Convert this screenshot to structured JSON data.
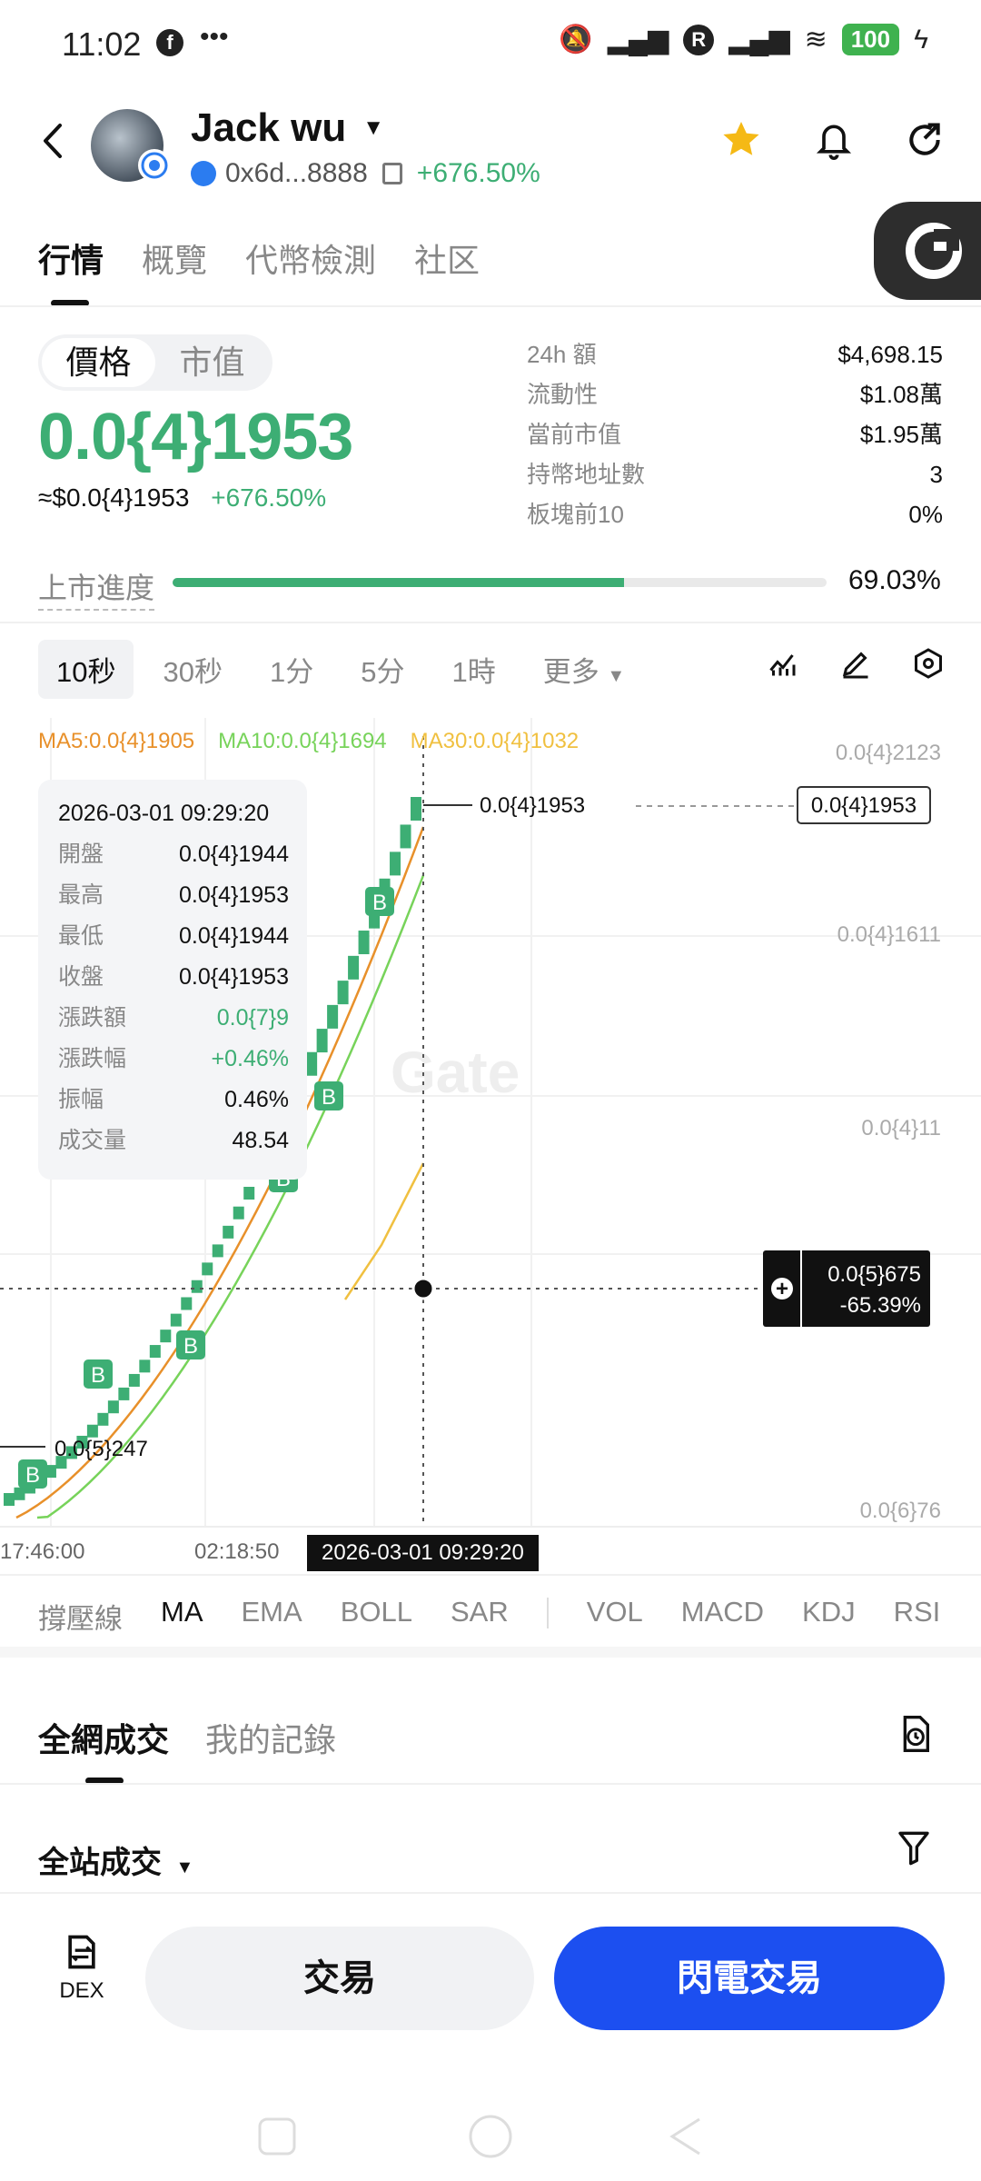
{
  "status_bar": {
    "time": "11:02",
    "dots": "•••",
    "battery": "100"
  },
  "header": {
    "name": "Jack wu",
    "address": "0x6d...8888",
    "change": "+676.50%"
  },
  "tabs": [
    "行情",
    "概覽",
    "代幣檢測",
    "社区"
  ],
  "price_toggle": {
    "price": "價格",
    "mcap": "市值"
  },
  "price": {
    "big": "0.0{4}1953",
    "usd": "≈$0.0{4}1953",
    "change": "+676.50%"
  },
  "stats": [
    {
      "k": "24h  額",
      "v": "$4,698.15"
    },
    {
      "k": "流動性",
      "v": "$1.08萬"
    },
    {
      "k": "當前市值",
      "v": "$1.95萬"
    },
    {
      "k": "持幣地址數",
      "v": "3"
    },
    {
      "k": "板塊前10",
      "v": "0%"
    }
  ],
  "progress": {
    "label": "上市進度",
    "value_text": "69.03%",
    "fraction": 0.6903
  },
  "timeframes": [
    "10秒",
    "30秒",
    "1分",
    "5分",
    "1時",
    "更多"
  ],
  "ma_legend": {
    "ma5": "MA5:0.0{4}1905",
    "ma10": "MA10:0.0{4}1694",
    "ma30": "MA30:0.0{4}1032"
  },
  "tooltip": {
    "date": "2026-03-01 09:29:20",
    "rows": [
      {
        "k": "開盤",
        "v": "0.0{4}1944"
      },
      {
        "k": "最高",
        "v": "0.0{4}1953"
      },
      {
        "k": "最低",
        "v": "0.0{4}1944"
      },
      {
        "k": "收盤",
        "v": "0.0{4}1953"
      },
      {
        "k": "漲跌額",
        "v": "0.0{7}9"
      },
      {
        "k": "漲跌幅",
        "v": "+0.46%"
      },
      {
        "k": "振幅",
        "v": "0.46%"
      },
      {
        "k": "成交量",
        "v": "48.54"
      }
    ]
  },
  "chart": {
    "y_labels": [
      "0.0{4}2123",
      "0.0{4}1611",
      "0.0{4}11",
      "0.0{6}76"
    ],
    "last_price_tag": "0.0{4}1953",
    "high_label": "0.0{4}1953",
    "low_label": "0.0{5}247",
    "cross_value": "0.0{5}675",
    "cross_pct": "-65.39%",
    "x_labels": [
      "17:46:00",
      "02:18:50"
    ],
    "x_active": "2026-03-01 09:29:20",
    "watermark": "Gate",
    "buy_marker": "B"
  },
  "indicators": [
    "撐壓線",
    "MA",
    "EMA",
    "BOLL",
    "SAR",
    "VOL",
    "MACD",
    "KDJ",
    "RSI"
  ],
  "trades": {
    "tabs": [
      "全網成交",
      "我的記錄"
    ],
    "filter": "全站成交"
  },
  "bottom": {
    "dex": "DEX",
    "trade": "交易",
    "flash": "閃電交易"
  },
  "colors": {
    "up": "#3dae74",
    "ma5": "#e8902a",
    "ma10": "#77d35a",
    "ma30": "#f0c040",
    "primary": "#1c4ff0"
  }
}
